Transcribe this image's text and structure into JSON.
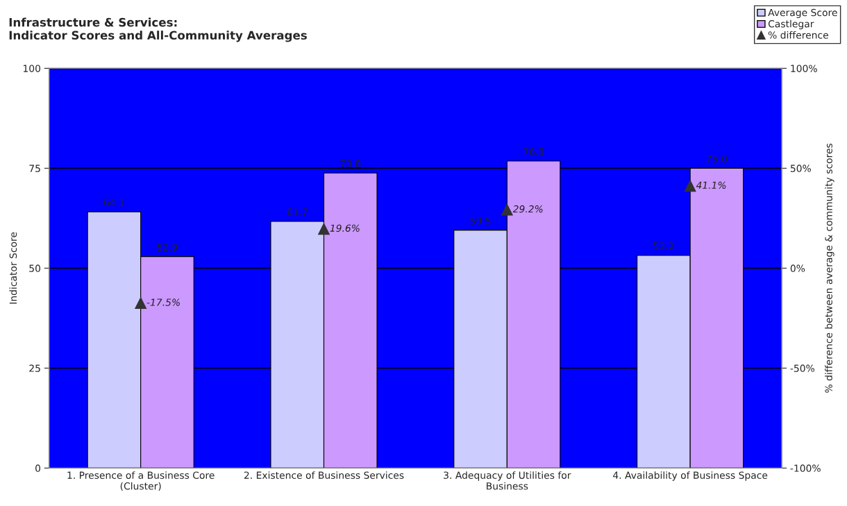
{
  "chart_data": {
    "type": "bar",
    "title": "Infrastructure & Services:\nIndicator Scores and All-Community Averages",
    "categories": [
      "1. Presence of a Business Core (Cluster)",
      "2. Existence of Business Services",
      "3. Adequacy of Utilities for Business",
      "4. Availability of Business Space"
    ],
    "series": [
      {
        "name": "Average Score",
        "color": "#ccccff",
        "values": [
          64.1,
          61.7,
          59.5,
          53.2
        ],
        "value_labels": [
          "64.1",
          "61.7",
          "59.5",
          "53.2"
        ]
      },
      {
        "name": "Castlegar",
        "color": "#cc99ff",
        "values": [
          52.9,
          73.8,
          76.8,
          75.0
        ],
        "value_labels": [
          "52.9",
          "73.8",
          "76.8",
          "75.0"
        ]
      },
      {
        "name": "% difference",
        "type": "scatter",
        "axis": "y2",
        "color": "#333333",
        "marker": "triangle",
        "values": [
          -17.5,
          19.6,
          29.2,
          41.1
        ],
        "value_labels": [
          "-17.5%",
          "19.6%",
          "29.2%",
          "41.1%"
        ]
      }
    ],
    "ylabel": "Indicator Score",
    "y2label": "% difference between average & community scores",
    "ylim": [
      0,
      100
    ],
    "yticks": [
      0,
      25,
      50,
      75,
      100
    ],
    "y2lim": [
      -100,
      100
    ],
    "y2ticks": [
      {
        "value": -100,
        "label": "-100%"
      },
      {
        "value": -50,
        "label": "-50%"
      },
      {
        "value": 0,
        "label": "0%"
      },
      {
        "value": 50,
        "label": "50%"
      },
      {
        "value": 100,
        "label": "100%"
      }
    ],
    "grid": "y",
    "legend": "top right"
  }
}
